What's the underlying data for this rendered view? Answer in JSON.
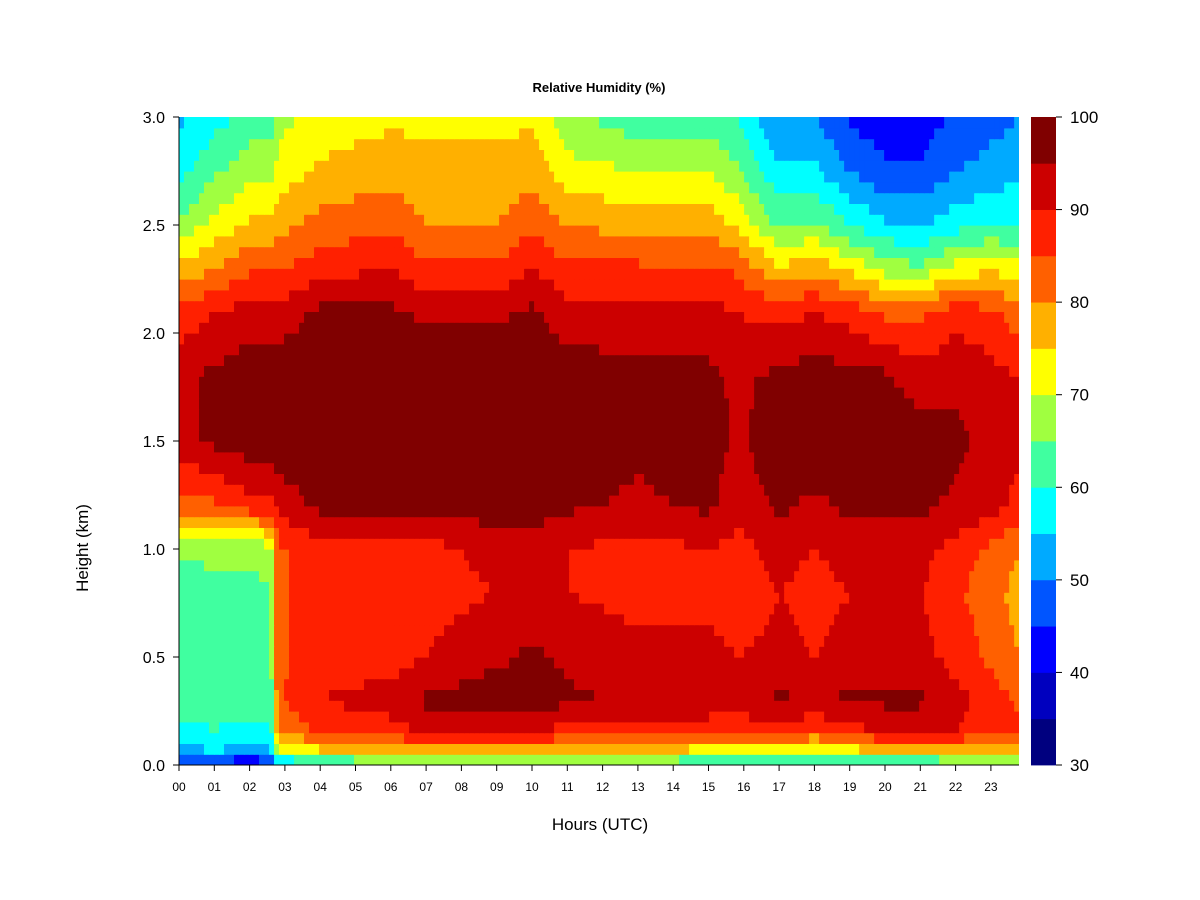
{
  "chart_data": {
    "type": "heatmap",
    "title": "Relative Humidity (%)",
    "xlabel": "Hours (UTC)",
    "ylabel": "Height (km)",
    "x_ticks": [
      "00",
      "01",
      "02",
      "03",
      "04",
      "05",
      "06",
      "07",
      "08",
      "09",
      "10",
      "11",
      "12",
      "13",
      "14",
      "15",
      "16",
      "17",
      "18",
      "19",
      "20",
      "21",
      "22",
      "23"
    ],
    "y_ticks": [
      "0.0",
      "0.5",
      "1.0",
      "1.5",
      "2.0",
      "2.5",
      "3.0"
    ],
    "xlim": [
      0,
      23.8
    ],
    "ylim": [
      0.0,
      3.0
    ],
    "x_hours": [
      0,
      1,
      2,
      2.6,
      2.8,
      4,
      6,
      7,
      9,
      10,
      11,
      13,
      15,
      15.8,
      17,
      18,
      19,
      20,
      21,
      22,
      23,
      23.8
    ],
    "y_km": [
      0.0,
      0.05,
      0.15,
      0.3,
      0.5,
      0.8,
      1.0,
      1.2,
      1.5,
      1.8,
      2.1,
      2.3,
      2.5,
      2.75,
      3.0
    ],
    "rh_percent": [
      [
        38,
        38,
        36,
        38,
        50,
        56,
        58,
        60,
        60,
        60,
        60,
        62,
        56,
        56,
        56,
        54,
        56,
        56,
        56,
        60,
        62,
        62
      ],
      [
        52,
        54,
        52,
        54,
        66,
        72,
        74,
        74,
        74,
        74,
        74,
        74,
        70,
        70,
        70,
        66,
        70,
        72,
        72,
        72,
        74,
        74
      ],
      [
        58,
        60,
        58,
        58,
        80,
        86,
        88,
        90,
        90,
        90,
        88,
        88,
        86,
        86,
        88,
        84,
        88,
        90,
        90,
        90,
        86,
        86
      ],
      [
        62,
        62,
        62,
        62,
        84,
        90,
        92,
        96,
        98,
        98,
        96,
        94,
        94,
        92,
        96,
        94,
        96,
        96,
        96,
        92,
        88,
        84
      ],
      [
        62,
        62,
        62,
        64,
        84,
        88,
        88,
        90,
        94,
        96,
        94,
        92,
        92,
        90,
        92,
        90,
        92,
        92,
        92,
        88,
        84,
        80
      ],
      [
        62,
        64,
        64,
        64,
        84,
        88,
        86,
        88,
        90,
        92,
        90,
        88,
        88,
        86,
        90,
        88,
        90,
        90,
        90,
        86,
        82,
        78
      ],
      [
        66,
        66,
        66,
        68,
        84,
        88,
        88,
        88,
        92,
        92,
        90,
        88,
        90,
        88,
        92,
        90,
        92,
        92,
        92,
        88,
        84,
        80
      ],
      [
        82,
        84,
        88,
        88,
        92,
        96,
        96,
        96,
        98,
        98,
        96,
        94,
        96,
        92,
        96,
        94,
        96,
        96,
        96,
        94,
        92,
        88
      ],
      [
        94,
        96,
        98,
        98,
        98,
        99,
        99,
        99,
        99,
        99,
        98,
        96,
        98,
        94,
        98,
        98,
        98,
        98,
        98,
        96,
        94,
        92
      ],
      [
        94,
        96,
        98,
        98,
        98,
        99,
        99,
        98,
        98,
        99,
        98,
        96,
        96,
        94,
        96,
        98,
        96,
        96,
        92,
        94,
        92,
        90
      ],
      [
        86,
        90,
        92,
        92,
        92,
        96,
        96,
        94,
        94,
        96,
        92,
        92,
        92,
        90,
        88,
        90,
        88,
        84,
        84,
        88,
        86,
        82
      ],
      [
        76,
        80,
        84,
        84,
        84,
        88,
        90,
        86,
        86,
        90,
        86,
        86,
        86,
        84,
        76,
        78,
        74,
        68,
        66,
        72,
        74,
        72
      ],
      [
        66,
        72,
        76,
        76,
        78,
        82,
        84,
        80,
        80,
        84,
        80,
        78,
        78,
        74,
        64,
        66,
        60,
        56,
        54,
        58,
        60,
        60
      ],
      [
        58,
        64,
        68,
        68,
        72,
        76,
        78,
        76,
        76,
        78,
        72,
        70,
        70,
        66,
        56,
        56,
        50,
        46,
        46,
        50,
        52,
        54
      ],
      [
        54,
        58,
        62,
        62,
        68,
        72,
        74,
        74,
        74,
        74,
        66,
        62,
        62,
        60,
        50,
        50,
        44,
        42,
        42,
        46,
        48,
        50
      ]
    ],
    "colorbar": {
      "ticks": [
        "30",
        "40",
        "50",
        "60",
        "70",
        "80",
        "90",
        "100"
      ],
      "range": [
        30,
        100
      ],
      "levels": 14,
      "colors": [
        "#00007F",
        "#0000BF",
        "#0000FF",
        "#0055FF",
        "#00AAFF",
        "#00FFFF",
        "#40FFA0",
        "#A0FF40",
        "#FFFF00",
        "#FFB000",
        "#FF6000",
        "#FF2000",
        "#CC0000",
        "#800000"
      ]
    }
  }
}
